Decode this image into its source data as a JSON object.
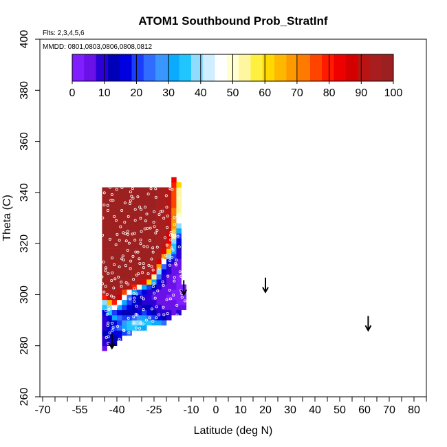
{
  "chart_data": {
    "type": "heatmap",
    "title": "ATOM1 Southbound Prob_StratInf",
    "flights_note": "Flts: 2,3,4,5,6",
    "dates_note": "MMDD: 0801,0803,0806,0808,0812",
    "xlabel": "Latitude (deg N)",
    "ylabel": "Theta (C)",
    "xlim": [
      -70,
      85
    ],
    "ylim": [
      260,
      400
    ],
    "x_ticks": [
      -70,
      -55,
      -40,
      -25,
      -10,
      0,
      10,
      20,
      30,
      40,
      50,
      60,
      70,
      80
    ],
    "x_tick_labels": [
      "-70",
      "-55",
      "-40",
      "-25",
      "-10",
      "0",
      "10",
      "20",
      "30",
      "40",
      "50",
      "60",
      "70",
      "80"
    ],
    "x_minor_ticks": [
      -65,
      -60,
      -50,
      -45,
      -35,
      -30,
      -20,
      -15,
      -5,
      5,
      15,
      25,
      35,
      45,
      55,
      65,
      75,
      85
    ],
    "y_ticks": [
      260,
      280,
      300,
      320,
      340,
      360,
      380,
      400
    ],
    "y_tick_labels": [
      "260",
      "280",
      "300",
      "320",
      "340",
      "360",
      "380",
      "400"
    ],
    "colorbar": {
      "ticks": [
        0,
        10,
        20,
        30,
        40,
        50,
        60,
        70,
        80,
        90,
        100
      ],
      "tick_labels": [
        "0",
        "10",
        "20",
        "30",
        "40",
        "50",
        "60",
        "70",
        "80",
        "90",
        "100"
      ],
      "colors": [
        "#7f1fff",
        "#6a10e8",
        "#2a00d6",
        "#0000b8",
        "#0000e0",
        "#1a3cff",
        "#2f6cff",
        "#3a96ff",
        "#0aaaff",
        "#22c6ff",
        "#8fdcff",
        "#cfeeff",
        "#ffffff",
        "#ffffd0",
        "#fff6a0",
        "#fff040",
        "#ffd800",
        "#ffb800",
        "#ff9900",
        "#ff7a00",
        "#ff4400",
        "#ff1a00",
        "#ee0000",
        "#d40000",
        "#b81414",
        "#a81e1e",
        "#9c2020"
      ]
    },
    "arrows": [
      {
        "lat": -42,
        "theta": 279
      },
      {
        "lat": -13,
        "theta": 300
      },
      {
        "lat": 20,
        "theta": 301
      },
      {
        "lat": 61.5,
        "theta": 286
      }
    ],
    "field": {
      "lat_bins": [
        -45,
        -43,
        -41,
        -39,
        -37,
        -35,
        -33,
        -31,
        -29,
        -27,
        -25,
        -23,
        -21,
        -19,
        -17,
        -15,
        -13
      ],
      "theta_start": 278,
      "theta_step": 2,
      "note": "values[i][j]: theta bin i (from theta_start upward), latitude bin j; null = no data",
      "values": [
        [
          5,
          null,
          null,
          null,
          null,
          null,
          null,
          null,
          null,
          null,
          null,
          null,
          null,
          null,
          null,
          null,
          null
        ],
        [
          8,
          10,
          12,
          null,
          null,
          null,
          null,
          null,
          null,
          null,
          null,
          null,
          null,
          null,
          null,
          null,
          null
        ],
        [
          10,
          12,
          14,
          16,
          null,
          null,
          null,
          null,
          null,
          null,
          null,
          null,
          null,
          null,
          null,
          null,
          null
        ],
        [
          12,
          14,
          16,
          18,
          20,
          25,
          null,
          null,
          null,
          null,
          null,
          null,
          null,
          null,
          null,
          null,
          null
        ],
        [
          10,
          15,
          20,
          25,
          30,
          35,
          35,
          30,
          30,
          null,
          null,
          null,
          null,
          null,
          null,
          null,
          null
        ],
        [
          8,
          12,
          18,
          22,
          28,
          35,
          38,
          38,
          36,
          34,
          32,
          30,
          25,
          null,
          null,
          null,
          null
        ],
        [
          10,
          15,
          30,
          25,
          20,
          22,
          25,
          28,
          30,
          25,
          20,
          15,
          12,
          10,
          null,
          null,
          null
        ],
        [
          15,
          35,
          20,
          15,
          12,
          12,
          14,
          18,
          20,
          18,
          12,
          10,
          8,
          8,
          6,
          8,
          null
        ],
        [
          35,
          40,
          45,
          30,
          20,
          15,
          12,
          10,
          12,
          14,
          10,
          8,
          6,
          6,
          5,
          5,
          4
        ],
        [
          40,
          65,
          80,
          45,
          30,
          20,
          15,
          12,
          10,
          10,
          8,
          6,
          5,
          4,
          4,
          3,
          3
        ],
        [
          80,
          90,
          92,
          88,
          45,
          25,
          15,
          12,
          10,
          8,
          6,
          5,
          4,
          3,
          3,
          2,
          2
        ],
        [
          96,
          96,
          94,
          90,
          75,
          45,
          30,
          20,
          15,
          10,
          8,
          6,
          5,
          4,
          3,
          3,
          2
        ],
        [
          98,
          98,
          97,
          96,
          94,
          90,
          80,
          50,
          30,
          20,
          12,
          10,
          6,
          5,
          4,
          3,
          2
        ],
        [
          98,
          98,
          98,
          98,
          97,
          96,
          95,
          92,
          85,
          60,
          30,
          15,
          8,
          6,
          4,
          3,
          null
        ],
        [
          98,
          98,
          98,
          98,
          98,
          97,
          96,
          95,
          94,
          90,
          55,
          25,
          10,
          6,
          4,
          3,
          null
        ],
        [
          98,
          98,
          98,
          98,
          98,
          98,
          97,
          96,
          95,
          94,
          85,
          40,
          15,
          8,
          5,
          4,
          null
        ],
        [
          98,
          98,
          98,
          98,
          98,
          98,
          98,
          97,
          96,
          95,
          92,
          70,
          25,
          10,
          6,
          5,
          null
        ],
        [
          98,
          98,
          98,
          98,
          98,
          98,
          98,
          98,
          97,
          96,
          95,
          88,
          45,
          18,
          8,
          6,
          null
        ],
        [
          98,
          98,
          98,
          98,
          98,
          98,
          98,
          98,
          98,
          97,
          96,
          94,
          70,
          40,
          20,
          8,
          null
        ],
        [
          98,
          98,
          98,
          98,
          98,
          98,
          98,
          98,
          98,
          98,
          97,
          95,
          85,
          60,
          30,
          10,
          null
        ],
        [
          98,
          98,
          98,
          98,
          98,
          98,
          98,
          98,
          98,
          98,
          97,
          96,
          92,
          75,
          35,
          12,
          null
        ],
        [
          98,
          98,
          98,
          98,
          98,
          98,
          98,
          98,
          98,
          98,
          97,
          96,
          94,
          82,
          40,
          15,
          null
        ],
        [
          98,
          98,
          98,
          98,
          98,
          98,
          98,
          98,
          98,
          98,
          97,
          96,
          94,
          88,
          55,
          20,
          null
        ],
        [
          98,
          98,
          98,
          98,
          98,
          98,
          98,
          98,
          98,
          98,
          97,
          96,
          95,
          90,
          65,
          30,
          null
        ],
        [
          98,
          98,
          98,
          98,
          98,
          98,
          98,
          98,
          98,
          98,
          97,
          96,
          95,
          92,
          70,
          40,
          null
        ],
        [
          98,
          98,
          98,
          98,
          98,
          98,
          98,
          98,
          98,
          98,
          97,
          96,
          95,
          92,
          70,
          45,
          null
        ],
        [
          98,
          98,
          98,
          98,
          98,
          98,
          98,
          98,
          98,
          98,
          97,
          96,
          95,
          92,
          72,
          50,
          null
        ],
        [
          98,
          98,
          98,
          98,
          98,
          98,
          98,
          98,
          98,
          98,
          97,
          96,
          95,
          92,
          74,
          55,
          null
        ],
        [
          98,
          98,
          98,
          98,
          98,
          98,
          98,
          98,
          98,
          98,
          97,
          96,
          95,
          92,
          75,
          55,
          null
        ],
        [
          98,
          98,
          98,
          98,
          98,
          98,
          98,
          98,
          98,
          98,
          97,
          96,
          95,
          92,
          75,
          55,
          null
        ],
        [
          98,
          98,
          98,
          98,
          98,
          98,
          98,
          98,
          98,
          98,
          97,
          96,
          95,
          92,
          75,
          55,
          null
        ],
        [
          98,
          98,
          98,
          98,
          98,
          98,
          98,
          98,
          98,
          98,
          97,
          96,
          95,
          92,
          75,
          55,
          null
        ],
        [
          null,
          null,
          null,
          null,
          null,
          null,
          null,
          null,
          null,
          null,
          null,
          null,
          null,
          null,
          80,
          60,
          null
        ],
        [
          null,
          null,
          null,
          null,
          null,
          null,
          null,
          null,
          null,
          null,
          null,
          null,
          null,
          null,
          85,
          null,
          null
        ]
      ]
    }
  }
}
